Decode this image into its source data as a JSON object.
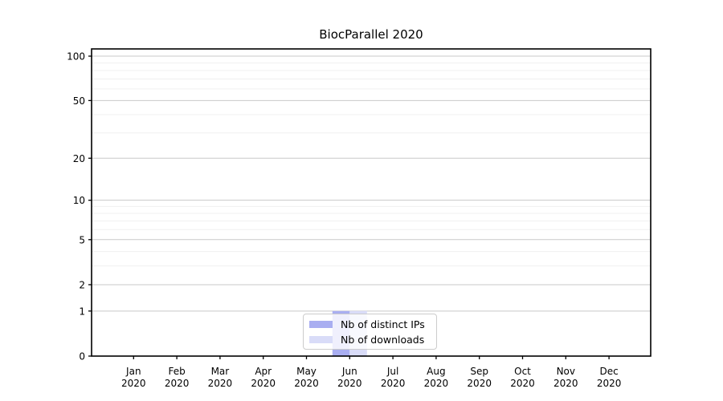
{
  "chart_data": {
    "type": "bar",
    "title": "BiocParallel 2020",
    "year": "2020",
    "categories": [
      "Jan",
      "Feb",
      "Mar",
      "Apr",
      "May",
      "Jun",
      "Jul",
      "Aug",
      "Sep",
      "Oct",
      "Nov",
      "Dec"
    ],
    "series": [
      {
        "name": "Nb of distinct IPs",
        "color": "#a9aef1",
        "values": [
          0,
          0,
          0,
          0,
          0,
          1,
          0,
          0,
          0,
          0,
          0,
          0
        ]
      },
      {
        "name": "Nb of downloads",
        "color": "#d9dcf8",
        "values": [
          0,
          0,
          0,
          0,
          0,
          1,
          0,
          0,
          0,
          0,
          0,
          0
        ]
      }
    ],
    "xlabel": "",
    "ylabel": "",
    "y_axis": {
      "scale": "log1p",
      "major_ticks": [
        0,
        1,
        2,
        5,
        10,
        20,
        50,
        100
      ],
      "minor_gridlines": [
        3,
        4,
        6,
        7,
        8,
        9,
        30,
        40,
        60,
        70,
        80,
        90
      ],
      "ylim": [
        0,
        113
      ]
    },
    "grid": "horizontal",
    "legend_position": "lower-center-inside",
    "colors": {
      "major_gridline": "#c9c9c9",
      "minor_gridline": "#f0f0f0",
      "spine": "#000000",
      "text": "#000000"
    }
  }
}
